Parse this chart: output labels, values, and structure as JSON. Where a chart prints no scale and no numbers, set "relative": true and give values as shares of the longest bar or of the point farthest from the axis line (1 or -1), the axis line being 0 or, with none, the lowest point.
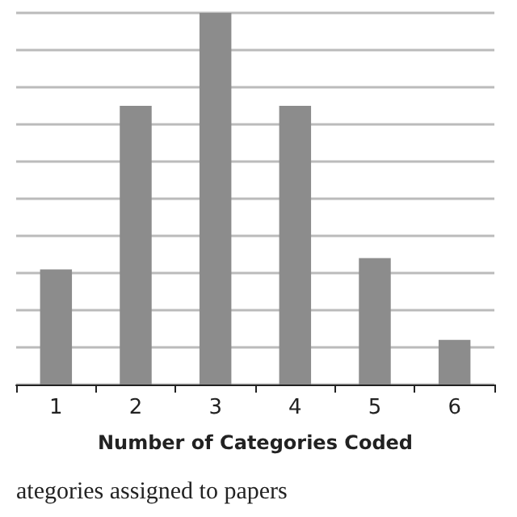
{
  "chart_data": {
    "type": "bar",
    "relative": true,
    "xlabel": "Number of Categories Coded",
    "categories": [
      "1",
      "2",
      "3",
      "4",
      "5",
      "6"
    ],
    "values": [
      0.31,
      0.75,
      1,
      0.75,
      0.34,
      0.12
    ],
    "color": "#8c8c8c",
    "grid": "y",
    "annotations": [
      "ategories assigned to papers"
    ]
  }
}
